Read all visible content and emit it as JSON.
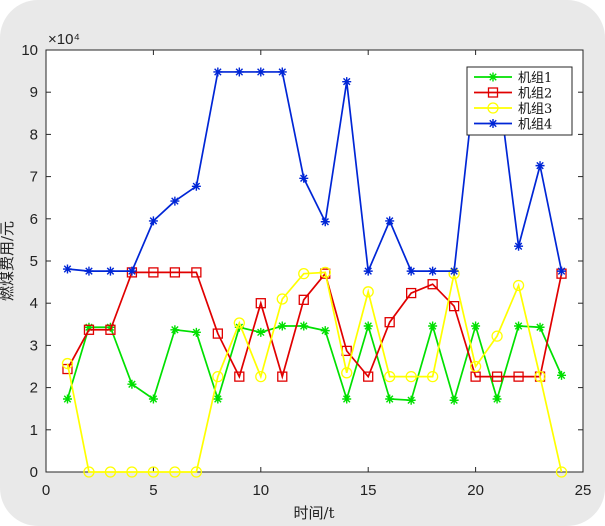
{
  "chart_data": {
    "type": "line",
    "title": "",
    "xlabel": "时间/t",
    "ylabel": "燃煤费用/元",
    "exponent_label": "×10⁴",
    "xlim": [
      0,
      25
    ],
    "ylim": [
      0,
      100000
    ],
    "x_ticks": [
      0,
      5,
      10,
      15,
      20,
      25
    ],
    "y_ticks": [
      0,
      1,
      2,
      3,
      4,
      5,
      6,
      7,
      8,
      9,
      10
    ],
    "y_scale": 10000,
    "grid": false,
    "legend_position": "top-right",
    "x": [
      1,
      2,
      3,
      4,
      5,
      6,
      7,
      8,
      9,
      10,
      11,
      12,
      13,
      14,
      15,
      16,
      17,
      18,
      19,
      20,
      21,
      22,
      23,
      24
    ],
    "series": [
      {
        "name": "机组1",
        "color": "#00e000",
        "marker": "asterisk",
        "values": [
          17300,
          34300,
          34300,
          20800,
          17300,
          33700,
          33100,
          17300,
          34300,
          33100,
          34600,
          34600,
          33500,
          17300,
          34600,
          17300,
          17000,
          34600,
          17000,
          34600,
          17300,
          34600,
          34300,
          22900
        ]
      },
      {
        "name": "机组2",
        "color": "#e00000",
        "marker": "square",
        "values": [
          24400,
          33700,
          33700,
          47300,
          47300,
          47300,
          47300,
          32800,
          22600,
          40000,
          22600,
          40800,
          47000,
          28700,
          22600,
          35500,
          42400,
          44500,
          39300,
          22600,
          22600,
          22600,
          22600,
          47000
        ]
      },
      {
        "name": "机组3",
        "color": "#ffff00",
        "marker": "circle",
        "values": [
          25700,
          0,
          0,
          0,
          0,
          0,
          0,
          22600,
          35300,
          22600,
          41000,
          47000,
          47300,
          23500,
          42700,
          22600,
          22600,
          22600,
          47000,
          25000,
          32200,
          44200,
          22600,
          0
        ]
      },
      {
        "name": "机组4",
        "color": "#0026d6",
        "marker": "asterisk",
        "values": [
          48100,
          47600,
          47600,
          47600,
          59500,
          64200,
          67700,
          94800,
          94800,
          94800,
          94800,
          69600,
          59300,
          92500,
          47600,
          59500,
          47600,
          47600,
          47600,
          94000,
          94000,
          53500,
          72600,
          47600
        ]
      }
    ]
  }
}
